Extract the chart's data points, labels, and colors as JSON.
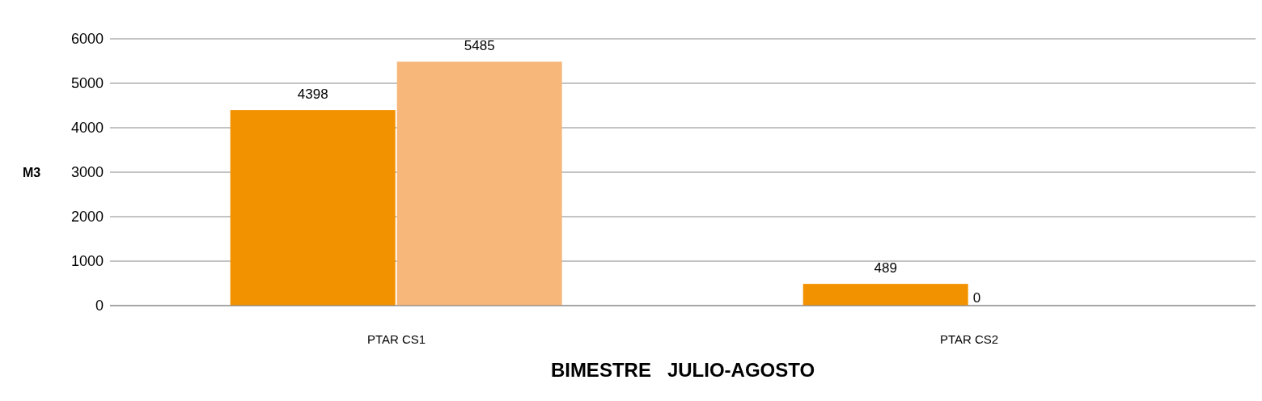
{
  "chart_data": {
    "type": "bar",
    "xlabel": "BIMESTRE   JULIO-AGOSTO",
    "ylabel": "M3",
    "categories": [
      "PTAR CS1",
      "PTAR CS2"
    ],
    "series": [
      {
        "color": "#f39200",
        "values": [
          4398,
          489
        ]
      },
      {
        "color": "#f7b67a",
        "values": [
          5485,
          0
        ]
      }
    ],
    "ylim": [
      0,
      6000
    ],
    "yticks": [
      0,
      1000,
      2000,
      3000,
      4000,
      5000,
      6000
    ],
    "grid": "y",
    "data_labels": true,
    "legend": false
  }
}
